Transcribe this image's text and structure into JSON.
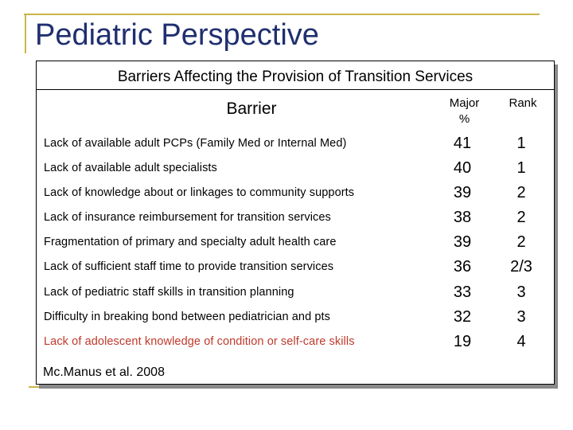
{
  "slide": {
    "title": "Pediatric Perspective"
  },
  "table": {
    "caption": "Barriers Affecting the Provision of Transition Services",
    "headers": {
      "barrier": "Barrier",
      "major_line1": "Major",
      "major_line2": "%",
      "rank": "Rank"
    },
    "rows": [
      {
        "barrier": "Lack of available adult PCPs  (Family Med or Internal Med)",
        "major": "41",
        "rank": "1"
      },
      {
        "barrier": "Lack of available adult specialists",
        "major": "40",
        "rank": "1"
      },
      {
        "barrier": "Lack of knowledge about or linkages to community supports",
        "major": "39",
        "rank": "2"
      },
      {
        "barrier": "Lack of insurance reimbursement for transition services",
        "major": "38",
        "rank": "2"
      },
      {
        "barrier": "Fragmentation of primary and specialty adult health care",
        "major": "39",
        "rank": "2"
      },
      {
        "barrier": "Lack of sufficient staff time to provide transition services",
        "major": "36",
        "rank": "2/3"
      },
      {
        "barrier": "Lack of pediatric staff skills in transition planning",
        "major": "33",
        "rank": "3"
      },
      {
        "barrier": "Difficulty in breaking bond between pediatrician and pts",
        "major": "32",
        "rank": "3"
      },
      {
        "barrier": "Lack of adolescent knowledge of condition or self-care skills",
        "major": "19",
        "rank": "4"
      }
    ],
    "citation": "Mc.Manus et al. 2008"
  },
  "colors": {
    "title": "#1f2f6f",
    "accent_rule": "#cbb54a",
    "highlight_row_text": "#c0392b"
  }
}
